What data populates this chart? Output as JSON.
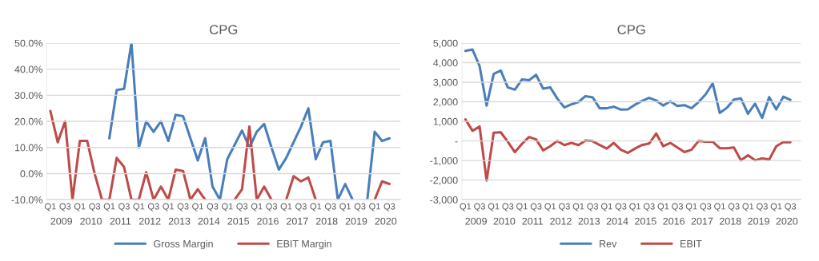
{
  "chart_data": [
    {
      "type": "line",
      "title": "CPG",
      "categories": [
        "Q1",
        null,
        "Q3",
        null,
        "Q1",
        null,
        "Q3",
        null,
        "Q1",
        null,
        "Q3",
        null,
        "Q1",
        null,
        "Q3",
        null,
        "Q1",
        null,
        "Q3",
        null,
        "Q1",
        null,
        "Q3",
        null,
        "Q1",
        null,
        "Q3",
        null,
        "Q1",
        null,
        "Q3",
        null,
        "Q1",
        null,
        "Q3",
        null,
        "Q1",
        null,
        "Q3",
        null,
        "Q1",
        null,
        "Q3",
        null,
        "Q1",
        null,
        "Q3",
        null
      ],
      "annotations": [
        "2009",
        "2010",
        "2011",
        "2012",
        "2013",
        "2014",
        "2015",
        "2016",
        "2017",
        "2018",
        "2019",
        "2020"
      ],
      "series": [
        {
          "name": "Gross Margin",
          "color": "#4a7ebb",
          "values": [
            null,
            null,
            null,
            null,
            null,
            null,
            null,
            null,
            13.5,
            32,
            32.5,
            50,
            10,
            20,
            16,
            20,
            12.5,
            22.5,
            22,
            13.5,
            5,
            13.5,
            -5,
            -10,
            5.5,
            11,
            16.5,
            10,
            16,
            19,
            10,
            1.5,
            6,
            12,
            18,
            25,
            5.5,
            12,
            12.5,
            -10,
            -4,
            -10,
            null,
            -10,
            16,
            12.5,
            13.5,
            null
          ]
        },
        {
          "name": "EBIT Margin",
          "color": "#be4b48",
          "values": [
            24,
            12,
            20,
            -10,
            12.5,
            12.5,
            0,
            -10,
            -10,
            6,
            2.5,
            -10,
            -10,
            0.5,
            -10,
            -5,
            -10,
            1.5,
            1,
            -10,
            -6,
            -10,
            null,
            null,
            null,
            -10,
            -6,
            18,
            -10,
            -5,
            -10,
            null,
            -10,
            -1,
            -3,
            -1.5,
            -10,
            null,
            null,
            null,
            null,
            null,
            null,
            null,
            -10,
            -3,
            -4,
            null
          ]
        }
      ],
      "ylim": [
        -10,
        50
      ],
      "yticks": [
        {
          "value": -10,
          "label": "-10.0%"
        },
        {
          "value": 0,
          "label": "0.0%"
        },
        {
          "value": 10,
          "label": "10.0%"
        },
        {
          "value": 20,
          "label": "20.0%"
        },
        {
          "value": 30,
          "label": "30.0%"
        },
        {
          "value": 40,
          "label": "40.0%"
        },
        {
          "value": 50,
          "label": "50.0%"
        }
      ],
      "grid": "y",
      "legend": "bottom"
    },
    {
      "type": "line",
      "title": "CPG",
      "categories": [
        "Q1",
        null,
        "Q3",
        null,
        "Q1",
        null,
        "Q3",
        null,
        "Q1",
        null,
        "Q3",
        null,
        "Q1",
        null,
        "Q3",
        null,
        "Q1",
        null,
        "Q3",
        null,
        "Q1",
        null,
        "Q3",
        null,
        "Q1",
        null,
        "Q3",
        null,
        "Q1",
        null,
        "Q3",
        null,
        "Q1",
        null,
        "Q3",
        null,
        "Q1",
        null,
        "Q3",
        null,
        "Q1",
        null,
        "Q3",
        null,
        "Q1",
        null,
        "Q3",
        null
      ],
      "annotations": [
        "2009",
        "2010",
        "2011",
        "2012",
        "2013",
        "2014",
        "2015",
        "2016",
        "2017",
        "2018",
        "2019",
        "2020"
      ],
      "series": [
        {
          "name": "Rev",
          "color": "#4a7ebb",
          "values": [
            4600,
            4670,
            3830,
            1810,
            3420,
            3600,
            2730,
            2620,
            3140,
            3100,
            3380,
            2670,
            2740,
            2170,
            1710,
            1870,
            1990,
            2290,
            2230,
            1670,
            1670,
            1750,
            1600,
            1610,
            1850,
            2050,
            2200,
            2070,
            1810,
            2020,
            1790,
            1830,
            1670,
            1990,
            2380,
            2940,
            1430,
            1690,
            2110,
            2170,
            1390,
            1900,
            1180,
            2240,
            1610,
            2260,
            2100,
            null
          ]
        },
        {
          "name": "EBIT",
          "color": "#be4b48",
          "values": [
            1100,
            520,
            740,
            -2020,
            420,
            440,
            -40,
            -570,
            -150,
            200,
            80,
            -480,
            -270,
            0,
            -210,
            -100,
            -210,
            20,
            -10,
            -210,
            -390,
            -100,
            -450,
            -610,
            -390,
            -210,
            -130,
            380,
            -270,
            -100,
            -330,
            -570,
            -450,
            0,
            -40,
            -40,
            -370,
            -370,
            -330,
            -990,
            -730,
            -990,
            -890,
            -950,
            -270,
            -60,
            -70,
            null
          ]
        }
      ],
      "ylim": [
        -3000,
        5000
      ],
      "yticks": [
        {
          "value": -3000,
          "label": "-3,000"
        },
        {
          "value": -2000,
          "label": "-2,000"
        },
        {
          "value": -1000,
          "label": "-1,000"
        },
        {
          "value": 0,
          "label": "-"
        },
        {
          "value": 1000,
          "label": "1,000"
        },
        {
          "value": 2000,
          "label": "2,000"
        },
        {
          "value": 3000,
          "label": "3,000"
        },
        {
          "value": 4000,
          "label": "4,000"
        },
        {
          "value": 5000,
          "label": "5,000"
        }
      ],
      "grid": "y",
      "legend": "bottom"
    }
  ]
}
